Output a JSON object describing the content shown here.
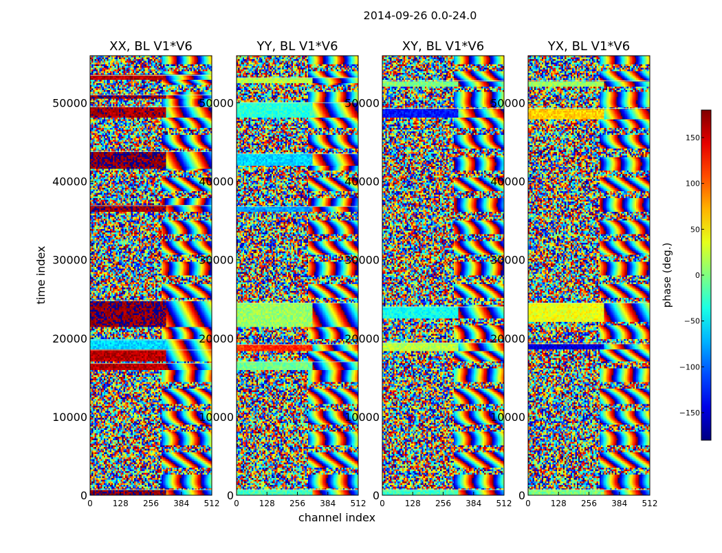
{
  "chart_data": {
    "type": "heatmap",
    "title": "2014-09-26 0.0-24.0",
    "xlabel": "channel index",
    "ylabel": "time index",
    "xlim": [
      0,
      512
    ],
    "ylim": [
      0,
      56000
    ],
    "x_ticks": [
      0,
      128,
      256,
      384,
      512
    ],
    "y_ticks": [
      0,
      10000,
      20000,
      30000,
      40000,
      50000
    ],
    "colorbar": {
      "label": "phase (deg.)",
      "range": [
        -180,
        180
      ],
      "ticks": [
        -150,
        -100,
        -50,
        0,
        50,
        100,
        150
      ],
      "tick_labels": [
        "−150",
        "−100",
        "−50",
        "0",
        "50",
        "100",
        "150"
      ],
      "colormap": "jet"
    },
    "panels": [
      {
        "title": "XX, BL V1*V6",
        "coherent_bands": [
          {
            "t0": 0,
            "t1": 700,
            "phase": 175
          },
          {
            "t0": 16000,
            "t1": 16800,
            "phase": 160
          },
          {
            "t0": 17000,
            "t1": 18500,
            "phase": 160
          },
          {
            "t0": 18500,
            "t1": 19800,
            "phase": -60
          },
          {
            "t0": 21500,
            "t1": 24800,
            "phase": 175
          },
          {
            "t0": 36200,
            "t1": 36900,
            "phase": 170
          },
          {
            "t0": 41500,
            "t1": 43800,
            "phase": 175
          },
          {
            "t0": 48200,
            "t1": 49500,
            "phase": 165
          },
          {
            "t0": 50500,
            "t1": 51000,
            "phase": 175
          },
          {
            "t0": 53000,
            "t1": 53500,
            "phase": 160
          }
        ]
      },
      {
        "title": "YY, BL V1*V6",
        "coherent_bands": [
          {
            "t0": 0,
            "t1": 700,
            "phase": -20
          },
          {
            "t0": 16000,
            "t1": 17000,
            "phase": -5
          },
          {
            "t0": 18300,
            "t1": 19200,
            "phase": 120
          },
          {
            "t0": 21500,
            "t1": 24500,
            "phase": 10
          },
          {
            "t0": 36000,
            "t1": 36800,
            "phase": -80
          },
          {
            "t0": 42000,
            "t1": 43500,
            "phase": -60
          },
          {
            "t0": 48200,
            "t1": 50000,
            "phase": -30
          },
          {
            "t0": 52500,
            "t1": 53200,
            "phase": 20
          }
        ]
      },
      {
        "title": "XY, BL V1*V6",
        "coherent_bands": [
          {
            "t0": 0,
            "t1": 700,
            "phase": -20
          },
          {
            "t0": 18400,
            "t1": 19400,
            "phase": 20
          },
          {
            "t0": 22500,
            "t1": 24000,
            "phase": -40
          },
          {
            "t0": 48200,
            "t1": 49300,
            "phase": -130
          },
          {
            "t0": 52000,
            "t1": 52800,
            "phase": 0
          }
        ]
      },
      {
        "title": "YX, BL V1*V6",
        "coherent_bands": [
          {
            "t0": 0,
            "t1": 700,
            "phase": 0
          },
          {
            "t0": 18500,
            "t1": 19300,
            "phase": -150
          },
          {
            "t0": 22000,
            "t1": 24500,
            "phase": 40
          },
          {
            "t0": 48000,
            "t1": 49300,
            "phase": 60
          },
          {
            "t0": 52000,
            "t1": 52800,
            "phase": 10
          }
        ]
      }
    ]
  }
}
